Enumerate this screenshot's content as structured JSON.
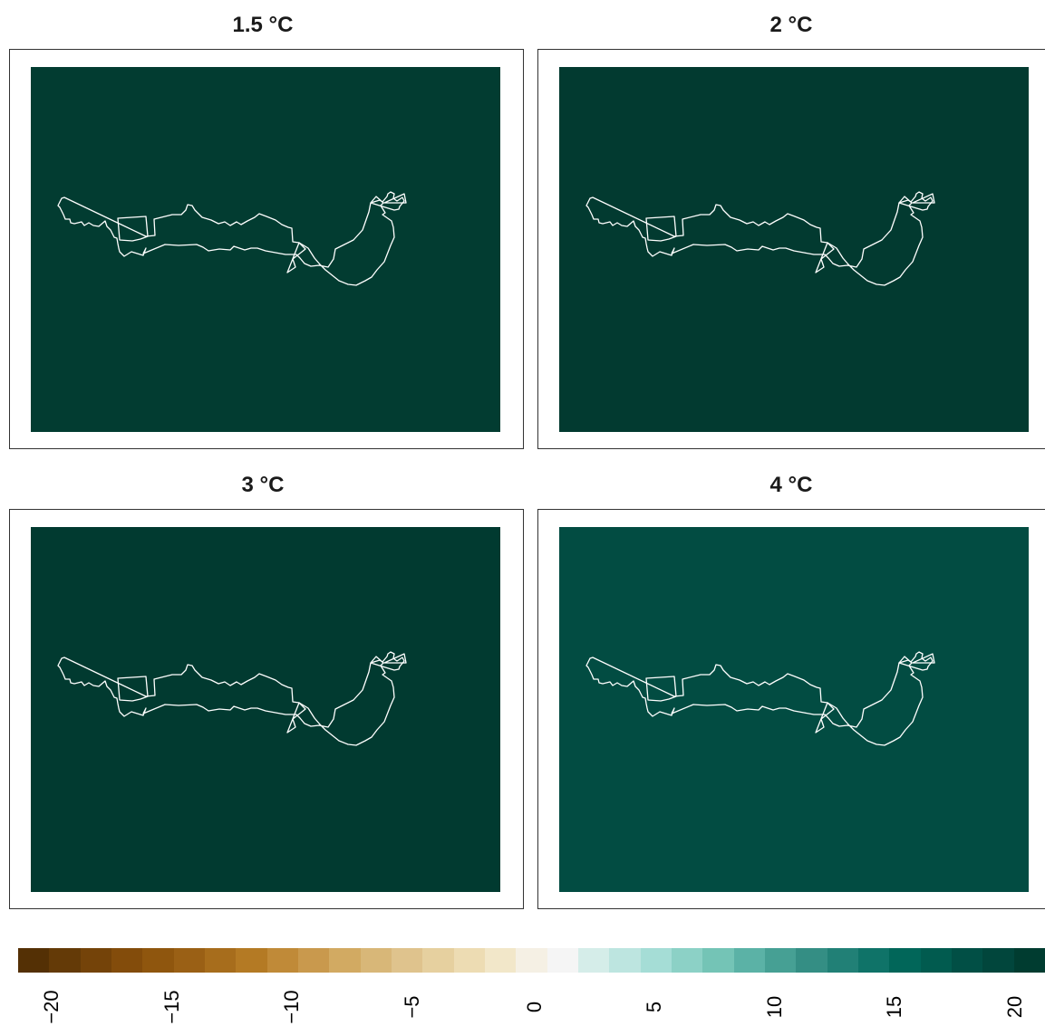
{
  "panels": [
    {
      "title": "1.5 °C",
      "fill": "#023c31"
    },
    {
      "title": "2 °C",
      "fill": "#023a30"
    },
    {
      "title": "3 °C",
      "fill": "#013a30"
    },
    {
      "title": "4 °C",
      "fill": "#024c42"
    }
  ],
  "region_outline_color": "#ffffff",
  "colorbar": {
    "colors": [
      "#543005",
      "#643a07",
      "#744309",
      "#834c0b",
      "#8f560e",
      "#9a6015",
      "#a76d1c",
      "#b47a24",
      "#c08a38",
      "#c9994d",
      "#d2aa62",
      "#d8b778",
      "#dfc38d",
      "#e6d09f",
      "#eddcb3",
      "#f2e7c9",
      "#f5f0e4",
      "#f5f5f5",
      "#d5ede9",
      "#bde5e0",
      "#a5ddd6",
      "#8cd1c6",
      "#74c4b6",
      "#5bb2a6",
      "#46a094",
      "#348e84",
      "#218076",
      "#0f7368",
      "#016659",
      "#015b4f",
      "#014f45",
      "#01463c",
      "#003c30"
    ],
    "ticks": [
      "−20",
      "−15",
      "−10",
      "−5",
      "0",
      "5",
      "10",
      "15",
      "20"
    ]
  }
}
